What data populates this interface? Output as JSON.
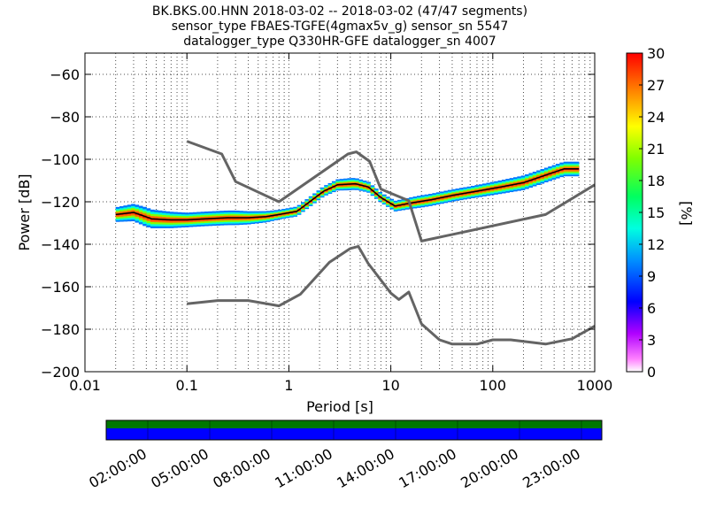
{
  "chart_data": [
    {
      "type": "heatmap",
      "title_lines": [
        "BK.BKS.00.HNN   2018-03-02 -- 2018-03-02  (47/47 segments)",
        "sensor_type FBAES-TGFE(4gmax5v_g) sensor_sn 5547",
        "datalogger_type Q330HR-GFE datalogger_sn 4007"
      ],
      "xlabel": "Period [s]",
      "ylabel": "Power [dB]",
      "x_scale": "log",
      "xlim": [
        0.01,
        1000
      ],
      "ylim": [
        -200,
        -50
      ],
      "x_ticks": [
        0.01,
        0.1,
        1,
        10,
        100,
        1000
      ],
      "x_tick_labels": [
        "0.01",
        "0.1",
        "1",
        "10",
        "100",
        "1000"
      ],
      "y_ticks": [
        -200,
        -180,
        -160,
        -140,
        -120,
        -100,
        -80,
        -60
      ],
      "y_tick_labels": [
        "−200",
        "−180",
        "−160",
        "−140",
        "−120",
        "−100",
        "−80",
        "−60"
      ],
      "grid": true,
      "colorbar": {
        "label": "[%]",
        "range": [
          0,
          30
        ],
        "ticks": [
          0,
          3,
          6,
          9,
          12,
          15,
          18,
          21,
          24,
          27,
          30
        ],
        "tick_labels": [
          "0",
          "3",
          "6",
          "9",
          "12",
          "15",
          "18",
          "21",
          "24",
          "27",
          "30"
        ]
      },
      "series": [
        {
          "role": "mode",
          "color": "#000000",
          "points": [
            [
              0.02,
              -126
            ],
            [
              0.03,
              -125
            ],
            [
              0.045,
              -128
            ],
            [
              0.07,
              -128.5
            ],
            [
              0.1,
              -128.5
            ],
            [
              0.15,
              -128
            ],
            [
              0.25,
              -127.5
            ],
            [
              0.4,
              -127.5
            ],
            [
              0.6,
              -127
            ],
            [
              0.8,
              -126
            ],
            [
              1.2,
              -124.5
            ],
            [
              1.6,
              -120
            ],
            [
              2.2,
              -115
            ],
            [
              3,
              -112
            ],
            [
              4.5,
              -111.5
            ],
            [
              6,
              -113
            ],
            [
              8,
              -118
            ],
            [
              11,
              -122
            ],
            [
              16,
              -120.5
            ],
            [
              25,
              -119
            ],
            [
              40,
              -117
            ],
            [
              70,
              -115
            ],
            [
              120,
              -113
            ],
            [
              200,
              -111
            ],
            [
              350,
              -107
            ],
            [
              500,
              -104.5
            ],
            [
              700,
              -104.5
            ]
          ]
        },
        {
          "role": "reference-high",
          "color": "#646464",
          "points": [
            [
              0.1,
              -91.5
            ],
            [
              0.22,
              -97.5
            ],
            [
              0.3,
              -110.5
            ],
            [
              0.8,
              -120
            ],
            [
              3.8,
              -97.5
            ],
            [
              4.6,
              -96.5
            ],
            [
              6.2,
              -101
            ],
            [
              8,
              -114
            ],
            [
              10,
              -116
            ],
            [
              15,
              -119.5
            ],
            [
              20,
              -138.5
            ],
            [
              330,
              -126
            ],
            [
              1000,
              -112
            ]
          ]
        },
        {
          "role": "reference-low",
          "color": "#646464",
          "points": [
            [
              0.1,
              -168
            ],
            [
              0.2,
              -166.5
            ],
            [
              0.4,
              -166.5
            ],
            [
              0.8,
              -169
            ],
            [
              1.3,
              -163.5
            ],
            [
              2.5,
              -148.5
            ],
            [
              4,
              -142
            ],
            [
              4.8,
              -141
            ],
            [
              6,
              -149
            ],
            [
              10,
              -163
            ],
            [
              12,
              -166
            ],
            [
              15,
              -162.5
            ],
            [
              20,
              -177.5
            ],
            [
              30,
              -185
            ],
            [
              40,
              -187
            ],
            [
              70,
              -187
            ],
            [
              100,
              -185
            ],
            [
              150,
              -185
            ],
            [
              330,
              -187
            ],
            [
              600,
              -184.5
            ],
            [
              1000,
              -178.5
            ]
          ]
        }
      ],
      "probability_density": {
        "unit": "%",
        "band_half_width_db": [
          [
            0.02,
            3
          ],
          [
            0.04,
            4
          ],
          [
            0.1,
            3
          ],
          [
            0.3,
            3
          ],
          [
            0.8,
            2
          ],
          [
            2,
            2
          ],
          [
            4,
            2.5
          ],
          [
            8,
            2
          ],
          [
            20,
            2.5
          ],
          [
            60,
            2.5
          ],
          [
            200,
            3
          ],
          [
            700,
            3
          ]
        ]
      }
    },
    {
      "type": "timeline",
      "tick_labels": [
        "02:00:00",
        "05:00:00",
        "08:00:00",
        "11:00:00",
        "14:00:00",
        "17:00:00",
        "20:00:00",
        "23:00:00"
      ],
      "bands": [
        {
          "color": "#007700"
        },
        {
          "color": "#0000ff"
        }
      ]
    }
  ]
}
